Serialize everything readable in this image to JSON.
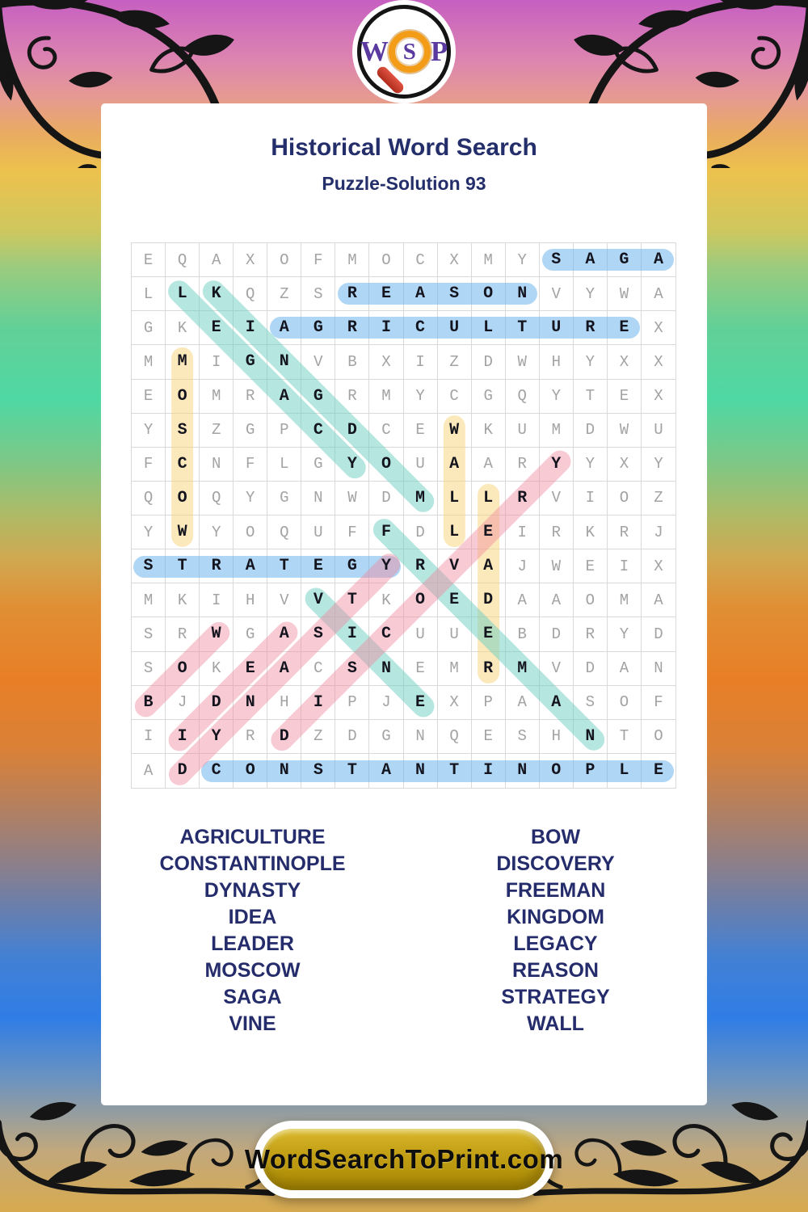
{
  "logo": {
    "letter_w": "W",
    "letter_s": "S",
    "letter_p": "P"
  },
  "header": {
    "title": "Historical Word Search",
    "subtitle": "Puzzle-Solution 93"
  },
  "grid": {
    "size": 16,
    "rows": [
      "EQAXOFMOCXMYSAGA",
      "LLKQZSREASONVYWA",
      "GKEIAGRICULTUREX",
      "MMIGNVBXIZDWHYXX",
      "EOMRAGRMYCGQYTEX",
      "YSZGPCDCEWKUMDWU",
      "FCNFLGYOUAARYYXY",
      "QOQYGNWDMLLRVIOZ",
      "YWYOQUFFDLEIRKRJ",
      "STRATEGYRVAJWEIX",
      "MKIHVVTKOEDAAOMA",
      "SRWGASICUUEBDRYD",
      "SOKEACSNEMRMVDAN",
      "BJDNHIPJEXPAASOF",
      "IIYRDZDGNQESHNTO",
      "ADCONSTANTINOPLE"
    ]
  },
  "highlight_colors": {
    "blue": "rgba(109,180,235,0.55)",
    "yellow": "rgba(248,212,120,0.50)",
    "teal": "rgba(108,205,193,0.50)",
    "pink": "rgba(240,140,160,0.45)"
  },
  "accent_colors": {
    "title_navy": "#232e6a",
    "word_navy": "#252c6b",
    "logo_purple": "#5b3aa0",
    "magnifier_orange": "#f29c18",
    "magnifier_handle_red": "#c23a28",
    "button_gold": "#b99511",
    "ornament_black": "#151515"
  },
  "solutions": [
    {
      "word": "SAGA",
      "start": [
        1,
        13
      ],
      "end": [
        1,
        16
      ],
      "color": "blue"
    },
    {
      "word": "REASON",
      "start": [
        2,
        7
      ],
      "end": [
        2,
        12
      ],
      "color": "blue"
    },
    {
      "word": "AGRICULTURE",
      "start": [
        3,
        5
      ],
      "end": [
        3,
        15
      ],
      "color": "blue"
    },
    {
      "word": "STRATEGY",
      "start": [
        10,
        1
      ],
      "end": [
        10,
        8
      ],
      "color": "blue"
    },
    {
      "word": "CONSTANTINOPLE",
      "start": [
        16,
        3
      ],
      "end": [
        16,
        16
      ],
      "color": "blue"
    },
    {
      "word": "MOSCOW",
      "start": [
        4,
        2
      ],
      "end": [
        9,
        2
      ],
      "color": "yellow"
    },
    {
      "word": "WALL",
      "start": [
        6,
        10
      ],
      "end": [
        9,
        10
      ],
      "color": "yellow"
    },
    {
      "word": "LEADER",
      "start": [
        8,
        11
      ],
      "end": [
        13,
        11
      ],
      "color": "yellow"
    },
    {
      "word": "LEGACY",
      "start": [
        2,
        2
      ],
      "end": [
        7,
        7
      ],
      "color": "teal"
    },
    {
      "word": "KINGDOM",
      "start": [
        2,
        3
      ],
      "end": [
        8,
        9
      ],
      "color": "teal"
    },
    {
      "word": "FREEMAN",
      "start": [
        9,
        8
      ],
      "end": [
        15,
        14
      ],
      "color": "teal"
    },
    {
      "word": "VINE",
      "start": [
        11,
        6
      ],
      "end": [
        14,
        9
      ],
      "color": "teal"
    },
    {
      "word": "BOW",
      "start": [
        14,
        1
      ],
      "end": [
        12,
        3
      ],
      "color": "pink"
    },
    {
      "word": "DISCOVERY",
      "start": [
        15,
        5
      ],
      "end": [
        7,
        13
      ],
      "color": "pink"
    },
    {
      "word": "DYNASTY",
      "start": [
        16,
        2
      ],
      "end": [
        10,
        8
      ],
      "color": "pink"
    },
    {
      "word": "IDEA",
      "start": [
        15,
        2
      ],
      "end": [
        12,
        5
      ],
      "color": "pink"
    }
  ],
  "word_list": {
    "left": [
      "AGRICULTURE",
      "CONSTANTINOPLE",
      "DYNASTY",
      "IDEA",
      "LEADER",
      "MOSCOW",
      "SAGA",
      "VINE"
    ],
    "right": [
      "BOW",
      "DISCOVERY",
      "FREEMAN",
      "KINGDOM",
      "LEGACY",
      "REASON",
      "STRATEGY",
      "WALL"
    ]
  },
  "footer": {
    "site_label": "WordSearchToPrint.com"
  }
}
